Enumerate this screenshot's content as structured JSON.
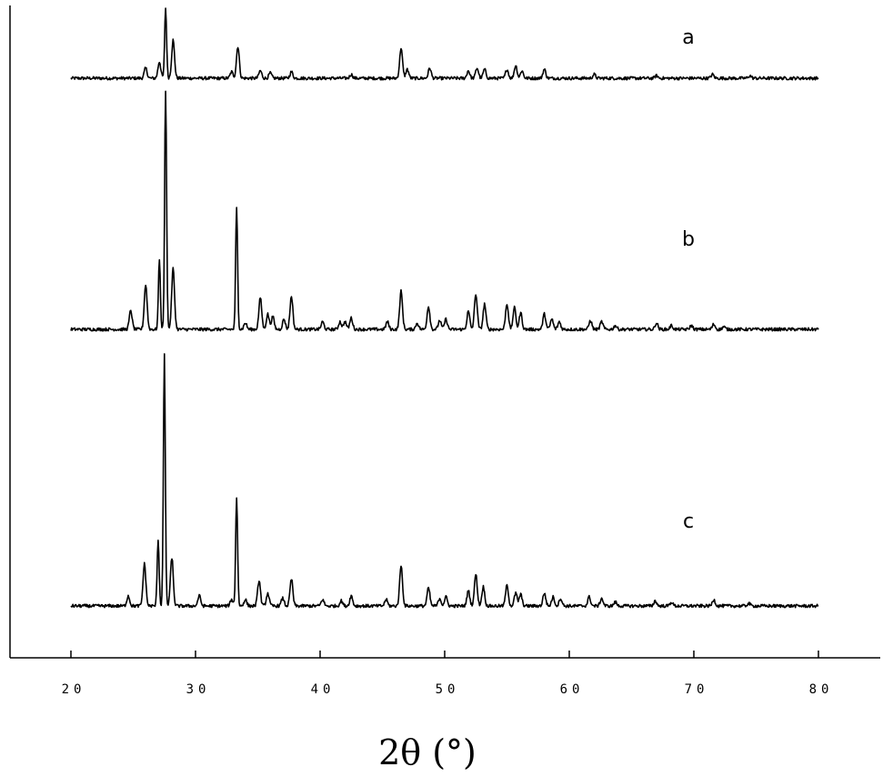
{
  "chart_data": {
    "type": "line",
    "title": "",
    "xlabel": "2θ (°)",
    "ylabel": "",
    "xlim": [
      15,
      85
    ],
    "xticks": [
      20,
      30,
      40,
      50,
      60,
      70,
      80
    ],
    "xtick_labels": [
      "20",
      "30",
      "40",
      "50",
      "60",
      "70",
      "80"
    ],
    "grid": false,
    "legend": "none",
    "series": [
      {
        "name": "a",
        "peaks": [
          [
            26.0,
            0.08
          ],
          [
            27.1,
            0.13
          ],
          [
            27.6,
            0.55
          ],
          [
            28.2,
            0.3
          ],
          [
            32.9,
            0.05
          ],
          [
            33.4,
            0.25
          ],
          [
            35.2,
            0.06
          ],
          [
            36.0,
            0.04
          ],
          [
            37.7,
            0.05
          ],
          [
            42.5,
            0.03
          ],
          [
            46.5,
            0.24
          ],
          [
            47.0,
            0.07
          ],
          [
            48.8,
            0.08
          ],
          [
            51.9,
            0.06
          ],
          [
            52.6,
            0.08
          ],
          [
            53.2,
            0.07
          ],
          [
            55.0,
            0.07
          ],
          [
            55.7,
            0.1
          ],
          [
            56.2,
            0.06
          ],
          [
            58.0,
            0.07
          ],
          [
            62.0,
            0.03
          ],
          [
            67.0,
            0.02
          ],
          [
            71.5,
            0.03
          ],
          [
            74.5,
            0.02
          ]
        ]
      },
      {
        "name": "b",
        "peaks": [
          [
            24.8,
            0.15
          ],
          [
            26.0,
            0.35
          ],
          [
            27.1,
            0.55
          ],
          [
            27.6,
            1.88
          ],
          [
            28.2,
            0.48
          ],
          [
            33.3,
            0.95
          ],
          [
            34.0,
            0.05
          ],
          [
            35.2,
            0.25
          ],
          [
            35.8,
            0.12
          ],
          [
            36.2,
            0.1
          ],
          [
            37.1,
            0.08
          ],
          [
            37.7,
            0.26
          ],
          [
            40.2,
            0.06
          ],
          [
            41.6,
            0.06
          ],
          [
            42.0,
            0.06
          ],
          [
            42.5,
            0.09
          ],
          [
            45.4,
            0.06
          ],
          [
            46.5,
            0.3
          ],
          [
            47.8,
            0.05
          ],
          [
            48.7,
            0.18
          ],
          [
            49.6,
            0.07
          ],
          [
            50.1,
            0.08
          ],
          [
            51.9,
            0.14
          ],
          [
            52.5,
            0.28
          ],
          [
            53.2,
            0.2
          ],
          [
            55.0,
            0.2
          ],
          [
            55.6,
            0.17
          ],
          [
            56.1,
            0.13
          ],
          [
            58.0,
            0.12
          ],
          [
            58.6,
            0.08
          ],
          [
            59.2,
            0.06
          ],
          [
            61.7,
            0.07
          ],
          [
            62.6,
            0.06
          ],
          [
            63.7,
            0.03
          ],
          [
            67.0,
            0.05
          ],
          [
            68.2,
            0.03
          ],
          [
            69.8,
            0.03
          ],
          [
            71.6,
            0.04
          ],
          [
            72.4,
            0.02
          ]
        ]
      },
      {
        "name": "c",
        "peaks": [
          [
            24.6,
            0.08
          ],
          [
            25.9,
            0.33
          ],
          [
            27.0,
            0.52
          ],
          [
            27.5,
            1.97
          ],
          [
            28.1,
            0.38
          ],
          [
            30.3,
            0.08
          ],
          [
            32.9,
            0.05
          ],
          [
            33.3,
            0.85
          ],
          [
            34.0,
            0.05
          ],
          [
            35.1,
            0.2
          ],
          [
            35.8,
            0.1
          ],
          [
            37.0,
            0.06
          ],
          [
            37.7,
            0.21
          ],
          [
            40.2,
            0.05
          ],
          [
            41.7,
            0.04
          ],
          [
            42.5,
            0.08
          ],
          [
            45.3,
            0.05
          ],
          [
            46.5,
            0.32
          ],
          [
            48.7,
            0.14
          ],
          [
            49.6,
            0.06
          ],
          [
            50.1,
            0.07
          ],
          [
            51.9,
            0.12
          ],
          [
            52.5,
            0.25
          ],
          [
            53.1,
            0.15
          ],
          [
            55.0,
            0.16
          ],
          [
            55.7,
            0.1
          ],
          [
            56.1,
            0.09
          ],
          [
            58.0,
            0.1
          ],
          [
            58.7,
            0.07
          ],
          [
            59.3,
            0.06
          ],
          [
            61.6,
            0.07
          ],
          [
            62.6,
            0.06
          ],
          [
            63.7,
            0.03
          ],
          [
            66.9,
            0.04
          ],
          [
            68.2,
            0.03
          ],
          [
            71.6,
            0.05
          ],
          [
            74.4,
            0.02
          ]
        ]
      }
    ]
  },
  "series_labels": [
    "a",
    "b",
    "c"
  ]
}
